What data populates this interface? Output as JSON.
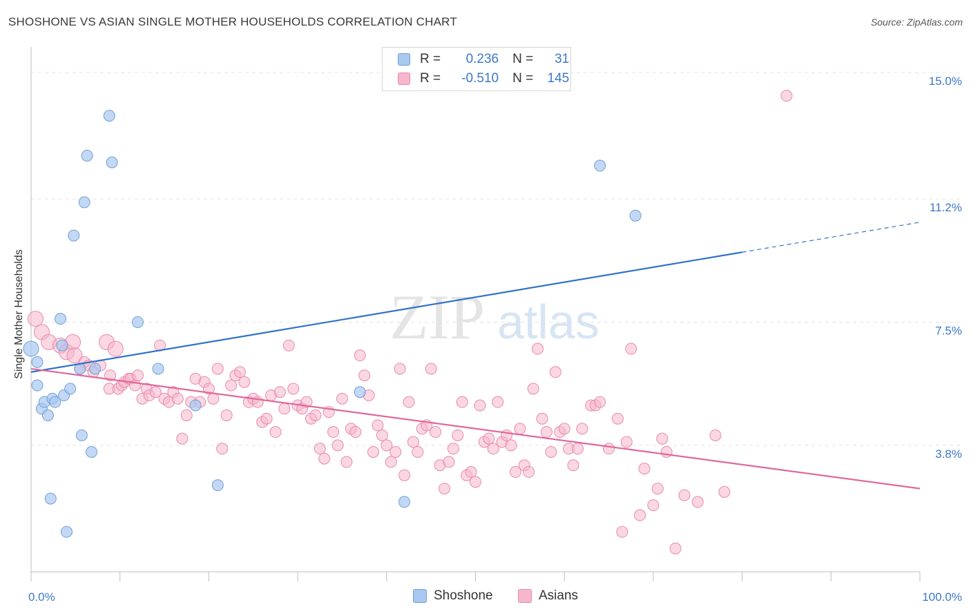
{
  "title": "SHOSHONE VS ASIAN SINGLE MOTHER HOUSEHOLDS CORRELATION CHART",
  "source": "Source: ZipAtlas.com",
  "watermark": {
    "zip": "ZIP",
    "atlas": "atlas"
  },
  "legend": {
    "rows": [
      {
        "r_label": "R =",
        "r_value": "0.236",
        "n_label": "N =",
        "n_value": "31"
      },
      {
        "r_label": "R =",
        "r_value": "-0.510",
        "n_label": "N =",
        "n_value": "145"
      }
    ]
  },
  "bottom_legend": {
    "shoshone": "Shoshone",
    "asians": "Asians"
  },
  "colors": {
    "shoshone_fill": "#a9c8ef",
    "shoshone_stroke": "#6f9fd8",
    "shoshone_line": "#2f72c9",
    "asians_fill": "#f6b6cb",
    "asians_stroke": "#e88aab",
    "asians_line": "#e0689a",
    "tick_label": "#3b78c9",
    "grid": "#e3e3e3"
  },
  "chart_data": {
    "type": "scatter",
    "title": "SHOSHONE VS ASIAN SINGLE MOTHER HOUSEHOLDS CORRELATION CHART",
    "xlabel": "",
    "ylabel": "Single Mother Households",
    "xlim": [
      0,
      100
    ],
    "ylim": [
      0,
      15.6
    ],
    "x_tick_labels": [
      "0.0%",
      "100.0%"
    ],
    "y_ticks": [
      3.8,
      7.5,
      11.2,
      15.0
    ],
    "y_tick_labels": [
      "3.8%",
      "7.5%",
      "11.2%",
      "15.0%"
    ],
    "grid": true,
    "legend_position": "top-center",
    "series": [
      {
        "name": "Shoshone",
        "r": 0.236,
        "n": 31,
        "trend": {
          "x0": 0,
          "y0": 6.0,
          "x1": 80,
          "y1": 9.6,
          "dashed_to_x": 100,
          "dashed_to_y": 10.5
        },
        "points": [
          [
            0,
            6.7
          ],
          [
            0.7,
            6.3
          ],
          [
            0.7,
            5.6
          ],
          [
            1.2,
            4.9
          ],
          [
            1.5,
            5.1
          ],
          [
            1.9,
            4.7
          ],
          [
            2.2,
            2.2
          ],
          [
            2.4,
            5.2
          ],
          [
            2.7,
            5.1
          ],
          [
            3.3,
            7.6
          ],
          [
            3.5,
            6.8
          ],
          [
            3.7,
            5.3
          ],
          [
            4.0,
            1.2
          ],
          [
            4.4,
            5.5
          ],
          [
            4.8,
            10.1
          ],
          [
            5.5,
            6.1
          ],
          [
            5.7,
            4.1
          ],
          [
            6.0,
            11.1
          ],
          [
            6.3,
            12.5
          ],
          [
            6.8,
            3.6
          ],
          [
            7.2,
            6.1
          ],
          [
            8.8,
            13.7
          ],
          [
            9.1,
            12.3
          ],
          [
            12.0,
            7.5
          ],
          [
            14.3,
            6.1
          ],
          [
            18.5,
            5.0
          ],
          [
            21.0,
            2.6
          ],
          [
            37.0,
            5.4
          ],
          [
            42.0,
            2.1
          ],
          [
            64.0,
            12.2
          ],
          [
            68.0,
            10.7
          ]
        ]
      },
      {
        "name": "Asians",
        "r": -0.51,
        "n": 145,
        "trend": {
          "x0": 0,
          "y0": 6.1,
          "x1": 100,
          "y1": 2.5
        },
        "points": [
          [
            0.5,
            7.6
          ],
          [
            1.2,
            7.2
          ],
          [
            2.0,
            6.9
          ],
          [
            3.3,
            6.8
          ],
          [
            4.0,
            6.6
          ],
          [
            4.7,
            6.9
          ],
          [
            4.9,
            6.5
          ],
          [
            5.5,
            6.1
          ],
          [
            6.0,
            6.3
          ],
          [
            6.5,
            6.2
          ],
          [
            7.0,
            6.0
          ],
          [
            7.8,
            6.2
          ],
          [
            8.5,
            6.9
          ],
          [
            8.8,
            5.5
          ],
          [
            8.9,
            5.9
          ],
          [
            9.5,
            6.7
          ],
          [
            9.8,
            5.5
          ],
          [
            10.2,
            5.6
          ],
          [
            10.5,
            5.7
          ],
          [
            11.0,
            5.8
          ],
          [
            11.2,
            5.8
          ],
          [
            11.7,
            5.6
          ],
          [
            12.0,
            5.9
          ],
          [
            12.5,
            5.2
          ],
          [
            13.0,
            5.5
          ],
          [
            13.3,
            5.3
          ],
          [
            14.0,
            5.4
          ],
          [
            14.5,
            6.8
          ],
          [
            15.0,
            5.2
          ],
          [
            15.5,
            5.1
          ],
          [
            16.0,
            5.4
          ],
          [
            16.5,
            5.2
          ],
          [
            17.0,
            4.0
          ],
          [
            17.5,
            4.7
          ],
          [
            18.0,
            5.1
          ],
          [
            18.5,
            5.8
          ],
          [
            19.0,
            5.1
          ],
          [
            19.5,
            5.7
          ],
          [
            20.0,
            5.5
          ],
          [
            20.5,
            5.2
          ],
          [
            21.0,
            6.1
          ],
          [
            21.5,
            3.7
          ],
          [
            22.0,
            4.7
          ],
          [
            22.5,
            5.6
          ],
          [
            23.0,
            5.9
          ],
          [
            23.5,
            6.0
          ],
          [
            24.0,
            5.7
          ],
          [
            24.5,
            5.1
          ],
          [
            25.0,
            5.2
          ],
          [
            25.5,
            5.1
          ],
          [
            26.0,
            4.5
          ],
          [
            26.5,
            4.6
          ],
          [
            27.0,
            5.3
          ],
          [
            27.5,
            4.2
          ],
          [
            28.0,
            5.4
          ],
          [
            28.5,
            4.9
          ],
          [
            29.0,
            6.8
          ],
          [
            29.5,
            5.5
          ],
          [
            30.0,
            5.0
          ],
          [
            30.5,
            4.9
          ],
          [
            31.0,
            5.1
          ],
          [
            31.5,
            4.6
          ],
          [
            32.0,
            4.7
          ],
          [
            32.5,
            3.7
          ],
          [
            33.0,
            3.4
          ],
          [
            33.5,
            4.8
          ],
          [
            34.0,
            4.2
          ],
          [
            34.5,
            3.8
          ],
          [
            35.0,
            5.2
          ],
          [
            35.5,
            3.3
          ],
          [
            36.0,
            4.3
          ],
          [
            36.5,
            4.2
          ],
          [
            37.0,
            6.5
          ],
          [
            37.5,
            5.9
          ],
          [
            38.0,
            5.3
          ],
          [
            38.5,
            3.6
          ],
          [
            39.0,
            4.4
          ],
          [
            39.5,
            4.1
          ],
          [
            40.0,
            3.8
          ],
          [
            40.5,
            3.3
          ],
          [
            41.0,
            3.6
          ],
          [
            41.5,
            6.1
          ],
          [
            42.0,
            2.9
          ],
          [
            42.5,
            5.1
          ],
          [
            43.0,
            3.9
          ],
          [
            43.5,
            3.6
          ],
          [
            44.0,
            4.3
          ],
          [
            44.5,
            4.4
          ],
          [
            45.0,
            6.1
          ],
          [
            45.5,
            4.2
          ],
          [
            46.0,
            3.2
          ],
          [
            46.5,
            2.5
          ],
          [
            47.0,
            3.3
          ],
          [
            47.5,
            3.7
          ],
          [
            48.0,
            4.1
          ],
          [
            48.5,
            5.1
          ],
          [
            49.0,
            2.9
          ],
          [
            49.5,
            3.0
          ],
          [
            50.0,
            2.7
          ],
          [
            50.5,
            5.0
          ],
          [
            51.0,
            3.9
          ],
          [
            51.5,
            4.0
          ],
          [
            52.0,
            3.7
          ],
          [
            52.5,
            5.1
          ],
          [
            53.0,
            3.9
          ],
          [
            53.5,
            4.1
          ],
          [
            54.0,
            3.8
          ],
          [
            54.5,
            3.0
          ],
          [
            55.0,
            4.3
          ],
          [
            55.5,
            3.2
          ],
          [
            56.0,
            3.0
          ],
          [
            56.5,
            5.5
          ],
          [
            57.0,
            6.7
          ],
          [
            57.5,
            4.6
          ],
          [
            58.0,
            4.2
          ],
          [
            58.5,
            3.6
          ],
          [
            59.0,
            6.0
          ],
          [
            59.5,
            4.2
          ],
          [
            60.0,
            4.3
          ],
          [
            60.5,
            3.7
          ],
          [
            61.0,
            3.2
          ],
          [
            61.5,
            3.7
          ],
          [
            62.0,
            4.3
          ],
          [
            63.0,
            5.0
          ],
          [
            63.5,
            5.0
          ],
          [
            64.0,
            5.1
          ],
          [
            65.0,
            3.7
          ],
          [
            66.0,
            4.6
          ],
          [
            66.5,
            1.2
          ],
          [
            67.0,
            3.9
          ],
          [
            67.5,
            6.7
          ],
          [
            68.5,
            1.7
          ],
          [
            69.0,
            3.1
          ],
          [
            70.0,
            2.0
          ],
          [
            70.5,
            2.5
          ],
          [
            71.0,
            4.0
          ],
          [
            71.5,
            3.6
          ],
          [
            72.5,
            0.7
          ],
          [
            73.5,
            2.3
          ],
          [
            75.0,
            2.1
          ],
          [
            77.0,
            4.1
          ],
          [
            78.0,
            2.4
          ],
          [
            85.0,
            14.3
          ]
        ]
      }
    ]
  }
}
